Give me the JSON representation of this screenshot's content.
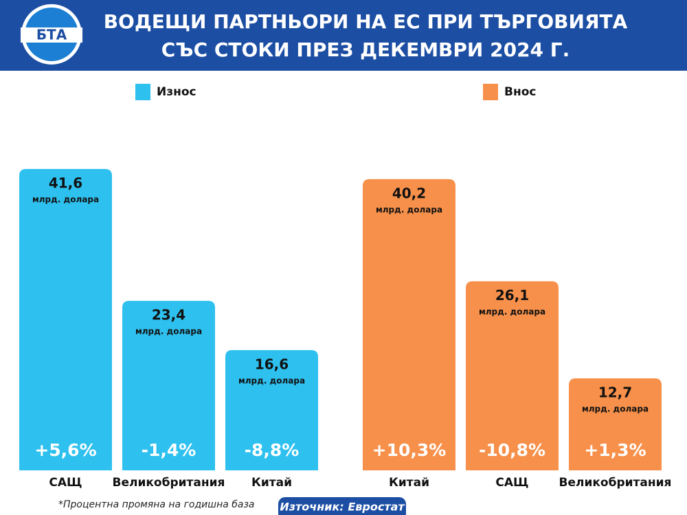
{
  "logo": "БТА",
  "header": {
    "title_lines": [
      "ВОДЕЩИ ПАРТНЬОРИ НА ЕС ПРИ ТЪРГОВИЯТА",
      "СЪС СТОКИ ПРЕЗ ДЕКЕМВРИ 2024 Г."
    ]
  },
  "chart_data": [
    {
      "type": "bar",
      "categories": [
        "САЩ",
        "Великобритания",
        "Китай"
      ],
      "series": [
        {
          "name": "Износ",
          "color": "#2ec0ef",
          "values": [
            41.6,
            23.4,
            16.6
          ],
          "value_labels": [
            "41,6",
            "23,4",
            "16,6"
          ],
          "unit": "млрд. долара",
          "change_labels": [
            "+5,6%",
            "-1,4%",
            "-8,8%"
          ]
        }
      ]
    },
    {
      "type": "bar",
      "categories": [
        "Китай",
        "САЩ",
        "Великобритания"
      ],
      "series": [
        {
          "name": "Внос",
          "color": "#f7904a",
          "values": [
            40.2,
            26.1,
            12.7
          ],
          "value_labels": [
            "40,2",
            "26,1",
            "12,7"
          ],
          "unit": "млрд. долара",
          "change_labels": [
            "+10,3%",
            "-10,8%",
            "+1,3%"
          ]
        }
      ]
    }
  ],
  "footnote": "*Процентна промяна на годишна база",
  "source": "Източник: Евростат"
}
